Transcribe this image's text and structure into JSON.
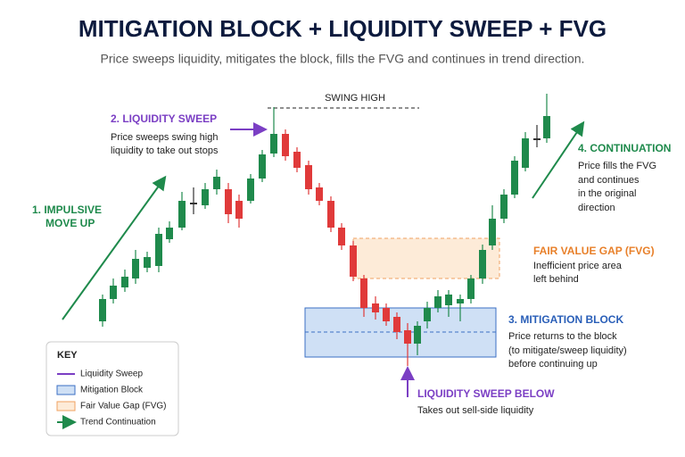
{
  "header": {
    "title": "MITIGATION BLOCK + LIQUIDITY SWEEP + FVG",
    "subtitle": "Price sweeps liquidity, mitigates the block, fills the FVG and continues in trend direction."
  },
  "swing_high": "SWING HIGH",
  "impulsive": {
    "lines": [
      "1.  IMPULSIVE",
      "MOVE UP"
    ]
  },
  "sweep": {
    "title": "2. LIQUIDITY SWEEP",
    "lines": [
      "Price sweeps swing high",
      "liquidity to take out stops"
    ]
  },
  "mitigation": {
    "title": "3. MITIGATION BLOCK",
    "lines": [
      "Price returns to the block",
      "(to mitigate/sweep liquidity)",
      "before continuing up"
    ]
  },
  "continuation": {
    "title": "4. CONTINUATION",
    "lines": [
      "Price fills the FVG",
      "and continues",
      "in the original",
      "direction"
    ]
  },
  "fvg": {
    "title": "FAIR VALUE GAP (FVG)",
    "lines": [
      "Inefficient price area",
      "left behind"
    ]
  },
  "sweep_below": {
    "title": "LIQUIDITY SWEEP BELOW",
    "lines": [
      "Takes out sell-side liquidity"
    ]
  },
  "key": {
    "title": "KEY",
    "items": [
      "Liquidity Sweep",
      "Mitigation Block",
      "Fair Value Gap (FVG)",
      "Trend Continuation"
    ]
  }
}
